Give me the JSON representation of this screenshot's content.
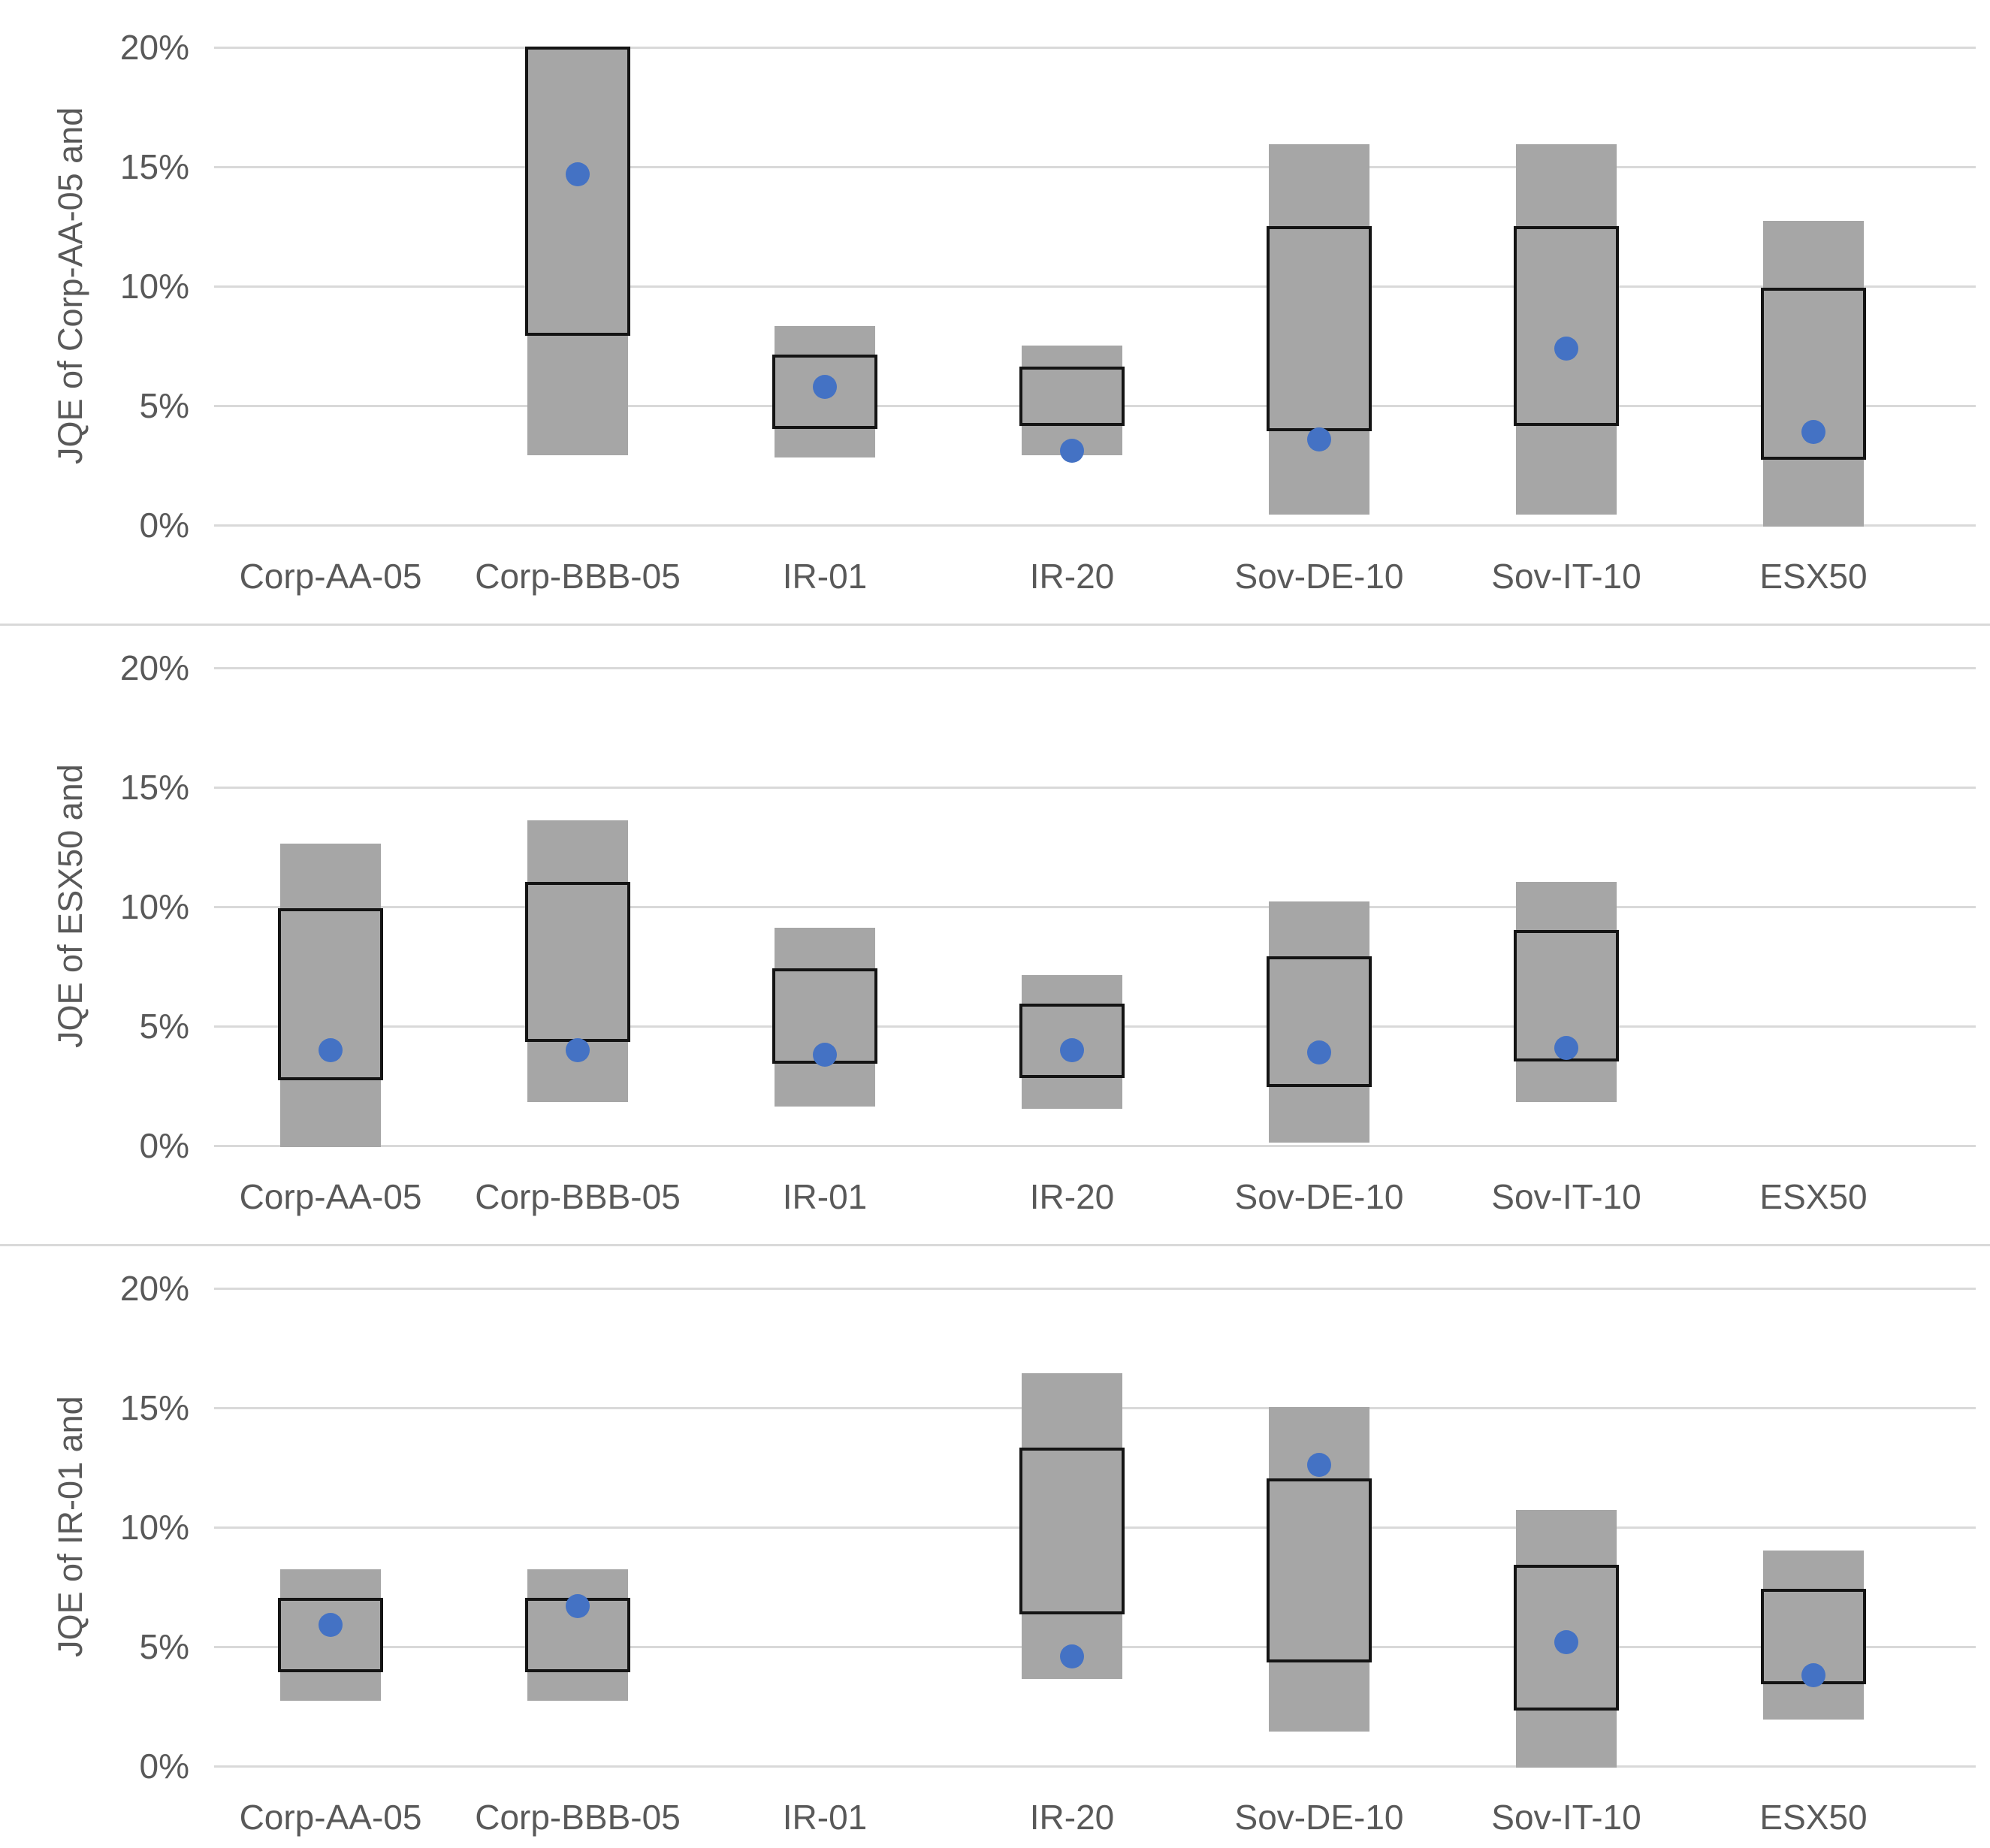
{
  "figure": {
    "background": "#ffffff",
    "description": "Three stacked range-box charts of joint quantile exceedance (JQE) estimates"
  },
  "colors": {
    "outer_bar_fill": "#a6a6a6",
    "inner_box_border": "#141414",
    "point_dot": "#4472c4",
    "gridline": "#d9d9d9",
    "axis_text": "#595959"
  },
  "chart_data": [
    {
      "type": "box",
      "ylabel": "JQE of Corp-AA-05 and",
      "ylim": [
        0,
        20
      ],
      "grid": "horizontal",
      "legend": "none",
      "yticks": [
        {
          "value": 20,
          "label": "20%"
        },
        {
          "value": 15,
          "label": "15%"
        },
        {
          "value": 10,
          "label": "10%"
        },
        {
          "value": 5,
          "label": "5%"
        },
        {
          "value": 0,
          "label": "0%"
        }
      ],
      "categories": [
        "Corp-AA-05",
        "Corp-BBB-05",
        "IR-01",
        "IR-20",
        "Sov-DE-10",
        "Sov-IT-10",
        "ESX50"
      ],
      "boxes": [
        {
          "category": "Corp-AA-05",
          "outer": null,
          "inner": null,
          "point": null
        },
        {
          "category": "Corp-BBB-05",
          "outer": [
            3.0,
            20.0
          ],
          "inner": [
            8.0,
            20.0
          ],
          "point": 14.7
        },
        {
          "category": "IR-01",
          "outer": [
            2.9,
            8.3
          ],
          "inner": [
            4.1,
            7.1
          ],
          "point": 5.8
        },
        {
          "category": "IR-20",
          "outer": [
            3.0,
            7.5
          ],
          "inner": [
            4.2,
            6.6
          ],
          "point": 3.1
        },
        {
          "category": "Sov-DE-10",
          "outer": [
            0.5,
            15.9
          ],
          "inner": [
            4.0,
            12.5
          ],
          "point": 3.6
        },
        {
          "category": "Sov-IT-10",
          "outer": [
            0.5,
            15.9
          ],
          "inner": [
            4.2,
            12.5
          ],
          "point": 7.4
        },
        {
          "category": "ESX50",
          "outer": [
            0.0,
            12.7
          ],
          "inner": [
            2.8,
            9.9
          ],
          "point": 3.9
        }
      ]
    },
    {
      "type": "box",
      "ylabel": "JQE of ESX50 and",
      "ylim": [
        0,
        20
      ],
      "grid": "horizontal",
      "legend": "none",
      "yticks": [
        {
          "value": 20,
          "label": "20%"
        },
        {
          "value": 15,
          "label": "15%"
        },
        {
          "value": 10,
          "label": "10%"
        },
        {
          "value": 5,
          "label": "5%"
        },
        {
          "value": 0,
          "label": "0%"
        }
      ],
      "categories": [
        "Corp-AA-05",
        "Corp-BBB-05",
        "IR-01",
        "IR-20",
        "Sov-DE-10",
        "Sov-IT-10",
        "ESX50"
      ],
      "boxes": [
        {
          "category": "Corp-AA-05",
          "outer": [
            0.0,
            12.6
          ],
          "inner": [
            2.8,
            9.9
          ],
          "point": 4.0
        },
        {
          "category": "Corp-BBB-05",
          "outer": [
            1.9,
            13.6
          ],
          "inner": [
            4.4,
            11.0
          ],
          "point": 4.0
        },
        {
          "category": "IR-01",
          "outer": [
            1.7,
            9.1
          ],
          "inner": [
            3.5,
            7.4
          ],
          "point": 3.8
        },
        {
          "category": "IR-20",
          "outer": [
            1.6,
            7.1
          ],
          "inner": [
            2.9,
            5.9
          ],
          "point": 4.0
        },
        {
          "category": "Sov-DE-10",
          "outer": [
            0.2,
            10.2
          ],
          "inner": [
            2.5,
            7.9
          ],
          "point": 3.9
        },
        {
          "category": "Sov-IT-10",
          "outer": [
            1.9,
            11.0
          ],
          "inner": [
            3.6,
            9.0
          ],
          "point": 4.1
        },
        {
          "category": "ESX50",
          "outer": null,
          "inner": null,
          "point": null
        }
      ]
    },
    {
      "type": "box",
      "ylabel": "JQE of IR-01 and",
      "ylim": [
        0,
        20
      ],
      "grid": "horizontal",
      "legend": "none",
      "yticks": [
        {
          "value": 20,
          "label": "20%"
        },
        {
          "value": 15,
          "label": "15%"
        },
        {
          "value": 10,
          "label": "10%"
        },
        {
          "value": 5,
          "label": "5%"
        },
        {
          "value": 0,
          "label": "0%"
        }
      ],
      "categories": [
        "Corp-AA-05",
        "Corp-BBB-05",
        "IR-01",
        "IR-20",
        "Sov-DE-10",
        "Sov-IT-10",
        "ESX50"
      ],
      "boxes": [
        {
          "category": "Corp-AA-05",
          "outer": [
            2.8,
            8.2
          ],
          "inner": [
            4.0,
            7.0
          ],
          "point": 5.9
        },
        {
          "category": "Corp-BBB-05",
          "outer": [
            2.8,
            8.2
          ],
          "inner": [
            4.0,
            7.0
          ],
          "point": 6.7
        },
        {
          "category": "IR-01",
          "outer": null,
          "inner": null,
          "point": null
        },
        {
          "category": "IR-20",
          "outer": [
            3.7,
            16.4
          ],
          "inner": [
            6.4,
            13.3
          ],
          "point": 4.6
        },
        {
          "category": "Sov-DE-10",
          "outer": [
            1.5,
            15.0
          ],
          "inner": [
            4.4,
            12.0
          ],
          "point": 12.6
        },
        {
          "category": "Sov-IT-10",
          "outer": [
            0.0,
            10.7
          ],
          "inner": [
            2.4,
            8.4
          ],
          "point": 5.2
        },
        {
          "category": "ESX50",
          "outer": [
            2.0,
            9.0
          ],
          "inner": [
            3.5,
            7.4
          ],
          "point": 3.8
        }
      ]
    }
  ]
}
